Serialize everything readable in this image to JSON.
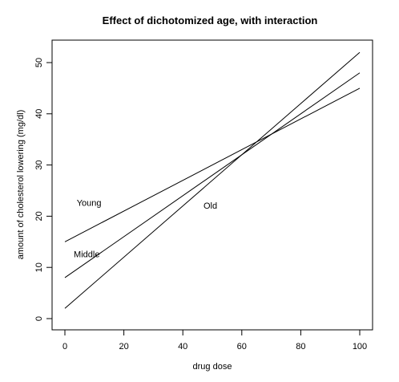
{
  "chart_data": {
    "type": "line",
    "title": "Effect of dichotomized age, with interaction",
    "xlabel": "drug dose",
    "ylabel": "amount of cholesterol lowering (mg/dl)",
    "xlim": [
      0,
      100
    ],
    "ylim": [
      0,
      50
    ],
    "x_ticks": [
      0,
      20,
      40,
      60,
      80,
      100
    ],
    "y_ticks": [
      0,
      10,
      20,
      30,
      40,
      50
    ],
    "grid": false,
    "x": [
      0,
      100
    ],
    "series": [
      {
        "name": "Young",
        "values": [
          15,
          45
        ]
      },
      {
        "name": "Middle",
        "values": [
          8,
          48
        ]
      },
      {
        "name": "Old",
        "values": [
          2,
          52
        ]
      }
    ],
    "annotations": [
      {
        "text": "Young",
        "x": 4,
        "y": 22
      },
      {
        "text": "Middle",
        "x": 3,
        "y": 12
      },
      {
        "text": "Old",
        "x": 47,
        "y": 21.5
      }
    ],
    "line_color": "#000000"
  }
}
